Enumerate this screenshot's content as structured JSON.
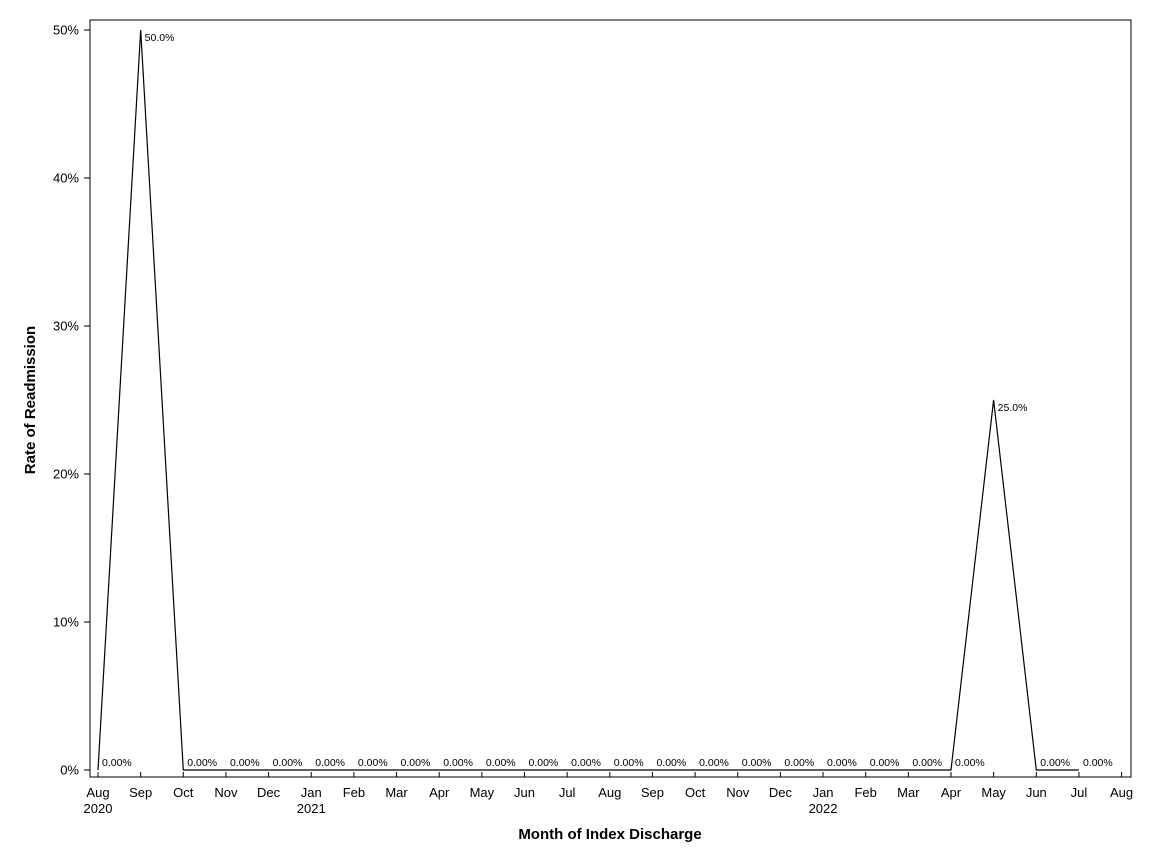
{
  "chart_data": {
    "type": "line",
    "title": "",
    "xlabel": "Month of Index Discharge",
    "ylabel": "Rate of Readmission",
    "ylim": [
      0,
      50
    ],
    "grid": false,
    "legend": "none",
    "line_color": "#000000",
    "x_ticks": [
      {
        "label": "Aug",
        "year": "2020"
      },
      {
        "label": "Sep",
        "year": ""
      },
      {
        "label": "Oct",
        "year": ""
      },
      {
        "label": "Nov",
        "year": ""
      },
      {
        "label": "Dec",
        "year": ""
      },
      {
        "label": "Jan",
        "year": "2021"
      },
      {
        "label": "Feb",
        "year": ""
      },
      {
        "label": "Mar",
        "year": ""
      },
      {
        "label": "Apr",
        "year": ""
      },
      {
        "label": "May",
        "year": ""
      },
      {
        "label": "Jun",
        "year": ""
      },
      {
        "label": "Jul",
        "year": ""
      },
      {
        "label": "Aug",
        "year": ""
      },
      {
        "label": "Sep",
        "year": ""
      },
      {
        "label": "Oct",
        "year": ""
      },
      {
        "label": "Nov",
        "year": ""
      },
      {
        "label": "Dec",
        "year": ""
      },
      {
        "label": "Jan",
        "year": "2022"
      },
      {
        "label": "Feb",
        "year": ""
      },
      {
        "label": "Mar",
        "year": ""
      },
      {
        "label": "Apr",
        "year": ""
      },
      {
        "label": "May",
        "year": ""
      },
      {
        "label": "Jun",
        "year": ""
      },
      {
        "label": "Jul",
        "year": ""
      },
      {
        "label": "Aug",
        "year": ""
      }
    ],
    "y_ticks": [
      {
        "value": 0,
        "label": "0%"
      },
      {
        "value": 10,
        "label": "10%"
      },
      {
        "value": 20,
        "label": "20%"
      },
      {
        "value": 30,
        "label": "30%"
      },
      {
        "value": 40,
        "label": "40%"
      },
      {
        "value": 50,
        "label": "50%"
      }
    ],
    "points": [
      {
        "x": "2020-08",
        "y": 0,
        "label": "0.00%"
      },
      {
        "x": "2020-09",
        "y": 50,
        "label": "50.0%"
      },
      {
        "x": "2020-10",
        "y": 0,
        "label": "0.00%"
      },
      {
        "x": "2020-11",
        "y": 0,
        "label": "0.00%"
      },
      {
        "x": "2020-12",
        "y": 0,
        "label": "0.00%"
      },
      {
        "x": "2021-01",
        "y": 0,
        "label": "0.00%"
      },
      {
        "x": "2021-02",
        "y": 0,
        "label": "0.00%"
      },
      {
        "x": "2021-03",
        "y": 0,
        "label": "0.00%"
      },
      {
        "x": "2021-04",
        "y": 0,
        "label": "0.00%"
      },
      {
        "x": "2021-05",
        "y": 0,
        "label": "0.00%"
      },
      {
        "x": "2021-06",
        "y": 0,
        "label": "0.00%"
      },
      {
        "x": "2021-07",
        "y": 0,
        "label": "0.00%"
      },
      {
        "x": "2021-08",
        "y": 0,
        "label": "0.00%"
      },
      {
        "x": "2021-09",
        "y": 0,
        "label": "0.00%"
      },
      {
        "x": "2021-10",
        "y": 0,
        "label": "0.00%"
      },
      {
        "x": "2021-11",
        "y": 0,
        "label": "0.00%"
      },
      {
        "x": "2021-12",
        "y": 0,
        "label": "0.00%"
      },
      {
        "x": "2022-01",
        "y": 0,
        "label": "0.00%"
      },
      {
        "x": "2022-02",
        "y": 0,
        "label": "0.00%"
      },
      {
        "x": "2022-03",
        "y": 0,
        "label": "0.00%"
      },
      {
        "x": "2022-04",
        "y": 0,
        "label": "0.00%"
      },
      {
        "x": "2022-05",
        "y": 25,
        "label": "25.0%"
      },
      {
        "x": "2022-06",
        "y": 0,
        "label": "0.00%"
      },
      {
        "x": "2022-07",
        "y": 0,
        "label": "0.00%"
      }
    ]
  }
}
